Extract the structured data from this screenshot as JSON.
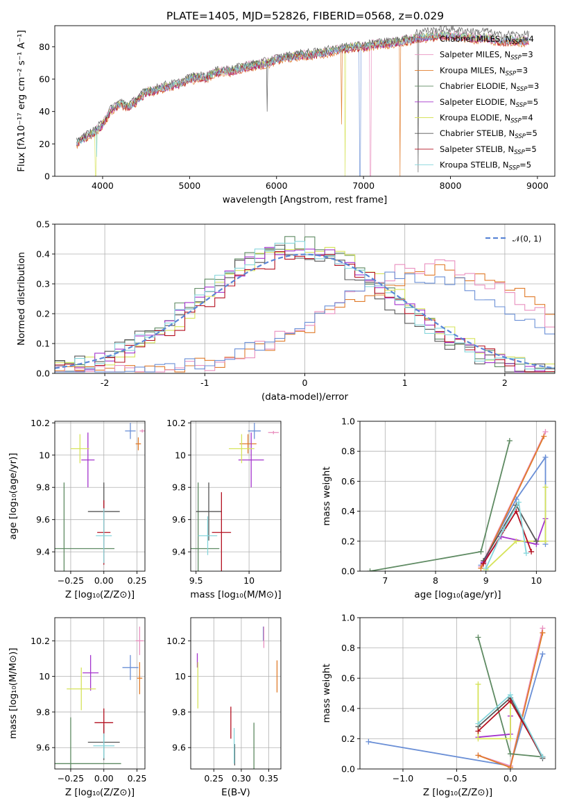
{
  "colors": {
    "Chabrier MILES": "#6a8fd6",
    "Salpeter MILES": "#e98fbf",
    "Kroupa MILES": "#e07b2a",
    "Chabrier ELODIE": "#5e8a62",
    "Salpeter ELODIE": "#a333cc",
    "Kroupa ELODIE": "#d6e35a",
    "Chabrier STELIB": "#555555",
    "Salpeter STELIB": "#b30f1f",
    "Kroupa STELIB": "#86d6dc"
  },
  "legend_entries": [
    {
      "model": "Chabrier MILES",
      "label": "Chabrier MILES, N",
      "sub": "SSP",
      "suffix": "=4"
    },
    {
      "model": "Salpeter MILES",
      "label": "Salpeter MILES, N",
      "sub": "SSP",
      "suffix": "=3"
    },
    {
      "model": "Kroupa MILES",
      "label": "Kroupa MILES, N",
      "sub": "SSP",
      "suffix": "=3"
    },
    {
      "model": "Chabrier ELODIE",
      "label": "Chabrier ELODIE, N",
      "sub": "SSP",
      "suffix": "=3"
    },
    {
      "model": "Salpeter ELODIE",
      "label": "Salpeter ELODIE, N",
      "sub": "SSP",
      "suffix": "=5"
    },
    {
      "model": "Kroupa ELODIE",
      "label": "Kroupa ELODIE, N",
      "sub": "SSP",
      "suffix": "=4"
    },
    {
      "model": "Chabrier STELIB",
      "label": "Chabrier STELIB, N",
      "sub": "SSP",
      "suffix": "=5"
    },
    {
      "model": "Salpeter STELIB",
      "label": "Salpeter STELIB, N",
      "sub": "SSP",
      "suffix": "=5"
    },
    {
      "model": "Kroupa STELIB",
      "label": "Kroupa STELIB, N",
      "sub": "SSP",
      "suffix": "=5"
    }
  ],
  "chart_data": [
    {
      "id": "spectrum",
      "type": "line",
      "title": "PLATE=1405, MJD=52826, FIBERID=0568, z=0.029",
      "xlabel": "wavelength [Angstrom, rest frame]",
      "ylabel": "Flux [fλ10⁻¹⁷ erg cm⁻² s⁻¹ A⁻¹]",
      "xlim": [
        3450,
        9200
      ],
      "ylim": [
        0,
        93
      ],
      "xticks": [
        4000,
        5000,
        6000,
        7000,
        8000,
        9000
      ],
      "yticks": [
        0,
        20,
        40,
        60,
        80
      ],
      "grid": false,
      "legend_position": "upper-right",
      "spectrum_envelope": {
        "x": [
          3700,
          3800,
          3900,
          4000,
          4100,
          4200,
          4300,
          4400,
          4500,
          4600,
          4700,
          4800,
          4900,
          5000,
          5100,
          5200,
          5300,
          5400,
          5500,
          5600,
          5700,
          5800,
          5900,
          6000,
          6100,
          6200,
          6300,
          6400,
          6500,
          6600,
          6700,
          6800,
          6900,
          7000,
          7100,
          7200,
          7300,
          7400,
          7500,
          7600,
          7700,
          7800,
          7900,
          8000,
          8100,
          8200,
          8300,
          8400,
          8500,
          8600,
          8700,
          8800,
          8900
        ],
        "y": [
          20,
          24,
          27,
          32,
          41,
          45,
          43,
          47,
          52,
          53,
          55,
          56,
          57,
          60,
          61,
          61,
          64,
          65,
          65,
          67,
          68,
          69,
          70,
          72,
          73,
          74,
          75,
          75,
          76,
          77,
          78,
          79,
          80,
          80,
          81,
          82,
          82,
          83,
          84,
          85,
          86,
          86,
          87,
          87,
          86,
          86,
          85,
          86,
          84,
          83,
          84,
          83,
          84
        ]
      },
      "series_offsets": [
        0.0,
        1.2,
        -1.4,
        0.8,
        -0.5,
        0.3,
        1.6,
        -0.9,
        -0.2
      ],
      "drops": [
        {
          "model": "Kroupa ELODIE",
          "x": 3920,
          "y": 0
        },
        {
          "model": "Kroupa STELIB",
          "x": 3930,
          "y": 12
        },
        {
          "model": "Chabrier STELIB",
          "x": 5890,
          "y": 40
        },
        {
          "model": "Kroupa MILES",
          "x": 6750,
          "y": 32
        },
        {
          "model": "Kroupa ELODIE",
          "x": 6790,
          "y": 0
        },
        {
          "model": "Chabrier MILES",
          "x": 6960,
          "y": 0
        },
        {
          "model": "Salpeter MILES",
          "x": 7080,
          "y": 0
        },
        {
          "model": "Kroupa MILES",
          "x": 7420,
          "y": 0
        },
        {
          "model": "Chabrier STELIB",
          "x": 7630,
          "y": 0
        }
      ]
    },
    {
      "id": "residuals",
      "type": "line",
      "xlabel": "(data-model)/error",
      "ylabel": "Normed distribution",
      "xlim": [
        -2.5,
        2.5
      ],
      "ylim": [
        0,
        0.5
      ],
      "xticks": [
        -2,
        -1,
        0,
        1,
        2
      ],
      "yticks": [
        0.0,
        0.1,
        0.2,
        0.3,
        0.4,
        0.5
      ],
      "grid": true,
      "legend": [
        {
          "label": "𝒩(0, 1)",
          "style": "dashed",
          "color": "#5b86d6"
        }
      ],
      "legend_position": "upper-right",
      "bin_width": 0.1,
      "histograms": [
        {
          "model": "Chabrier ELODIE",
          "center": -0.1,
          "peak": 0.44,
          "width": 0.95
        },
        {
          "model": "Kroupa ELODIE",
          "center": 0.0,
          "peak": 0.43,
          "width": 0.95
        },
        {
          "model": "Chabrier STELIB",
          "center": -0.15,
          "peak": 0.41,
          "width": 0.95
        },
        {
          "model": "Salpeter ELODIE",
          "center": -0.05,
          "peak": 0.42,
          "width": 0.95
        },
        {
          "model": "Salpeter STELIB",
          "center": 0.0,
          "peak": 0.4,
          "width": 0.95
        },
        {
          "model": "Kroupa STELIB",
          "center": -0.1,
          "peak": 0.42,
          "width": 0.95
        },
        {
          "model": "Kroupa MILES",
          "center": 1.4,
          "peak": 0.34,
          "width": 1.1
        },
        {
          "model": "Salpeter MILES",
          "center": 1.25,
          "peak": 0.36,
          "width": 1.0
        },
        {
          "model": "Chabrier MILES",
          "center": 1.1,
          "peak": 0.33,
          "width": 1.0
        }
      ]
    },
    {
      "id": "age_vs_Z",
      "type": "scatter",
      "xlabel": "Z [log₁₀(Z/Z⊙)]",
      "ylabel": "age  [log₁₀(age/yr)]",
      "xlim": [
        -0.37,
        0.31
      ],
      "ylim": [
        9.28,
        10.21
      ],
      "xticks": [
        -0.25,
        0.0,
        0.25
      ],
      "xtick_labels": [
        "−0.25",
        "0.00",
        "0.25"
      ],
      "yticks": [
        9.4,
        9.6,
        9.8,
        10.0,
        10.2
      ],
      "grid": true,
      "points": [
        {
          "model": "Chabrier MILES",
          "x": 0.2,
          "y": 10.15,
          "xerr": 0.04,
          "yerr": 0.05
        },
        {
          "model": "Salpeter MILES",
          "x": 0.29,
          "y": 10.15,
          "xerr": 0.02,
          "yerr": 0.01
        },
        {
          "model": "Kroupa MILES",
          "x": 0.26,
          "y": 10.07,
          "xerr": 0.02,
          "yerr": 0.04
        },
        {
          "model": "Chabrier ELODIE",
          "x": -0.3,
          "y": 9.42,
          "xerr": 0.38,
          "yerr": 0.41
        },
        {
          "model": "Salpeter ELODIE",
          "x": -0.12,
          "y": 9.97,
          "xerr": 0.05,
          "yerr": 0.17
        },
        {
          "model": "Kroupa ELODIE",
          "x": -0.18,
          "y": 10.04,
          "xerr": 0.07,
          "yerr": 0.09
        },
        {
          "model": "Chabrier STELIB",
          "x": 0.0,
          "y": 9.65,
          "xerr": 0.12,
          "yerr": 0.18
        },
        {
          "model": "Salpeter STELIB",
          "x": 0.0,
          "y": 9.52,
          "xerr": 0.05,
          "yerr": 0.2
        },
        {
          "model": "Kroupa STELIB",
          "x": 0.0,
          "y": 9.5,
          "xerr": 0.06,
          "yerr": 0.17
        }
      ]
    },
    {
      "id": "age_vs_mass",
      "type": "scatter",
      "xlabel": "mass [log₁₀(M/M⊙)]",
      "ylabel": "",
      "xlim": [
        9.45,
        10.3
      ],
      "ylim": [
        9.28,
        10.21
      ],
      "xticks": [
        9.5,
        10.0
      ],
      "yticks": [
        9.4,
        9.6,
        9.8,
        10.0,
        10.2
      ],
      "grid": true,
      "points": [
        {
          "model": "Chabrier MILES",
          "x": 10.05,
          "y": 10.15,
          "xerr": 0.06,
          "yerr": 0.05
        },
        {
          "model": "Salpeter MILES",
          "x": 10.23,
          "y": 10.14,
          "xerr": 0.05,
          "yerr": 0.01
        },
        {
          "model": "Kroupa MILES",
          "x": 9.99,
          "y": 10.07,
          "xerr": 0.08,
          "yerr": 0.06
        },
        {
          "model": "Chabrier ELODIE",
          "x": 9.52,
          "y": 9.42,
          "xerr": 0.2,
          "yerr": 0.41
        },
        {
          "model": "Salpeter ELODIE",
          "x": 10.02,
          "y": 9.97,
          "xerr": 0.12,
          "yerr": 0.17
        },
        {
          "model": "Kroupa ELODIE",
          "x": 9.93,
          "y": 10.04,
          "xerr": 0.12,
          "yerr": 0.09
        },
        {
          "model": "Chabrier STELIB",
          "x": 9.62,
          "y": 9.65,
          "xerr": 0.12,
          "yerr": 0.18
        },
        {
          "model": "Salpeter STELIB",
          "x": 9.74,
          "y": 9.52,
          "xerr": 0.09,
          "yerr": 0.25
        },
        {
          "model": "Kroupa STELIB",
          "x": 9.61,
          "y": 9.5,
          "xerr": 0.09,
          "yerr": 0.12
        }
      ]
    },
    {
      "id": "weight_vs_age",
      "type": "line",
      "xlabel": "age  [log₁₀(age/yr)]",
      "ylabel": "mass weight",
      "xlim": [
        6.5,
        10.38
      ],
      "ylim": [
        0,
        1
      ],
      "xticks": [
        7,
        8,
        9,
        10
      ],
      "yticks": [
        0.0,
        0.2,
        0.4,
        0.6,
        0.8,
        1.0
      ],
      "grid": true,
      "series": [
        {
          "model": "Chabrier ELODIE",
          "x": [
            6.7,
            8.9,
            9.47
          ],
          "y": [
            0.0,
            0.13,
            0.87
          ]
        },
        {
          "model": "Chabrier MILES",
          "x": [
            8.9,
            9.6,
            10.18,
            10.18
          ],
          "y": [
            0.04,
            0.48,
            0.76,
            0.18
          ]
        },
        {
          "model": "Salpeter MILES",
          "x": [
            8.9,
            10.18
          ],
          "y": [
            0.03,
            0.93
          ]
        },
        {
          "model": "Kroupa MILES",
          "x": [
            8.9,
            10.15
          ],
          "y": [
            0.02,
            0.9
          ]
        },
        {
          "model": "Salpeter ELODIE",
          "x": [
            8.95,
            9.3,
            10.0,
            10.18
          ],
          "y": [
            0.06,
            0.23,
            0.18,
            0.35
          ]
        },
        {
          "model": "Kroupa ELODIE",
          "x": [
            9.0,
            9.6,
            10.18,
            10.18
          ],
          "y": [
            0.01,
            0.2,
            0.2,
            0.56
          ]
        },
        {
          "model": "Chabrier STELIB",
          "x": [
            8.95,
            9.6,
            10.0
          ],
          "y": [
            0.07,
            0.44,
            0.2
          ]
        },
        {
          "model": "Salpeter STELIB",
          "x": [
            8.95,
            9.6,
            9.9
          ],
          "y": [
            0.05,
            0.4,
            0.13
          ]
        },
        {
          "model": "Kroupa STELIB",
          "x": [
            9.0,
            9.35,
            9.65,
            9.8
          ],
          "y": [
            0.02,
            0.28,
            0.46,
            0.12
          ]
        }
      ]
    },
    {
      "id": "mass_vs_Z",
      "type": "scatter",
      "xlabel": "Z [log₁₀(Z/Z⊙)]",
      "ylabel": "mass [log₁₀(M/M⊙)]",
      "xlim": [
        -0.37,
        0.31
      ],
      "ylim": [
        9.48,
        10.33
      ],
      "xticks": [
        -0.25,
        0.0,
        0.25
      ],
      "xtick_labels": [
        "−0.25",
        "0.00",
        "0.25"
      ],
      "yticks": [
        9.6,
        9.8,
        10.0,
        10.2
      ],
      "grid": true,
      "points": [
        {
          "model": "Chabrier MILES",
          "x": 0.2,
          "y": 10.05,
          "xerr": 0.06,
          "yerr": 0.07
        },
        {
          "model": "Salpeter MILES",
          "x": 0.27,
          "y": 10.2,
          "xerr": 0.03,
          "yerr": 0.08
        },
        {
          "model": "Kroupa MILES",
          "x": 0.27,
          "y": 9.99,
          "xerr": 0.02,
          "yerr": 0.09
        },
        {
          "model": "Chabrier ELODIE",
          "x": -0.25,
          "y": 9.51,
          "xerr": 0.38,
          "yerr": 0.26
        },
        {
          "model": "Salpeter ELODIE",
          "x": -0.1,
          "y": 10.02,
          "xerr": 0.06,
          "yerr": 0.1
        },
        {
          "model": "Kroupa ELODIE",
          "x": -0.17,
          "y": 9.93,
          "xerr": 0.11,
          "yerr": 0.12
        },
        {
          "model": "Chabrier STELIB",
          "x": 0.0,
          "y": 9.63,
          "xerr": 0.12,
          "yerr": 0.1
        },
        {
          "model": "Salpeter STELIB",
          "x": 0.0,
          "y": 9.74,
          "xerr": 0.07,
          "yerr": 0.08
        },
        {
          "model": "Kroupa STELIB",
          "x": 0.0,
          "y": 9.61,
          "xerr": 0.08,
          "yerr": 0.07
        }
      ]
    },
    {
      "id": "mass_vs_EBV",
      "type": "scatter",
      "xlabel": "E(B-V)",
      "ylabel": "",
      "xlim": [
        0.208,
        0.372
      ],
      "ylim": [
        9.48,
        10.33
      ],
      "xticks": [
        0.25,
        0.3,
        0.35
      ],
      "xtick_labels": [
        "0.25",
        "0.30",
        "0.35"
      ],
      "yticks": [
        9.6,
        9.8,
        10.0,
        10.2
      ],
      "grid": true,
      "points": [
        {
          "model": "Chabrier MILES",
          "x": 0.34,
          "y": 10.24,
          "xerr": 0.0,
          "yerr": 0.04
        },
        {
          "model": "Salpeter MILES",
          "x": 0.341,
          "y": 10.22,
          "xerr": 0.0,
          "yerr": 0.06
        },
        {
          "model": "Kroupa MILES",
          "x": 0.365,
          "y": 10.0,
          "xerr": 0.0,
          "yerr": 0.09
        },
        {
          "model": "Chabrier ELODIE",
          "x": 0.323,
          "y": 9.6,
          "xerr": 0.0,
          "yerr": 0.14
        },
        {
          "model": "Salpeter ELODIE",
          "x": 0.22,
          "y": 10.09,
          "xerr": 0.0,
          "yerr": 0.04
        },
        {
          "model": "Kroupa ELODIE",
          "x": 0.221,
          "y": 9.95,
          "xerr": 0.0,
          "yerr": 0.13
        },
        {
          "model": "Chabrier STELIB",
          "x": 0.288,
          "y": 9.56,
          "xerr": 0.0,
          "yerr": 0.06
        },
        {
          "model": "Salpeter STELIB",
          "x": 0.281,
          "y": 9.74,
          "xerr": 0.0,
          "yerr": 0.09
        },
        {
          "model": "Kroupa STELIB",
          "x": 0.287,
          "y": 9.61,
          "xerr": 0.0,
          "yerr": 0.1
        }
      ]
    },
    {
      "id": "weight_vs_Z",
      "type": "line",
      "xlabel": "Z [log₁₀(Z/Z⊙)]",
      "ylabel": "mass weight",
      "xlim": [
        -1.4,
        0.42
      ],
      "ylim": [
        0,
        1
      ],
      "xticks": [
        -1.0,
        -0.5,
        0.0
      ],
      "xtick_labels": [
        "−1.0",
        "−0.5",
        "0.0"
      ],
      "yticks": [
        0.0,
        0.2,
        0.4,
        0.6,
        0.8,
        1.0
      ],
      "grid": true,
      "series": [
        {
          "model": "Chabrier MILES",
          "x": [
            -1.32,
            0.0,
            0.3
          ],
          "y": [
            0.18,
            0.02,
            0.76
          ]
        },
        {
          "model": "Salpeter MILES",
          "x": [
            -0.3,
            0.0,
            0.3
          ],
          "y": [
            0.09,
            0.02,
            0.93
          ]
        },
        {
          "model": "Kroupa MILES",
          "x": [
            -0.3,
            0.0,
            0.3
          ],
          "y": [
            0.09,
            0.01,
            0.9
          ]
        },
        {
          "model": "Chabrier ELODIE",
          "x": [
            -0.3,
            0.0,
            0.3
          ],
          "y": [
            0.87,
            0.1,
            0.08
          ]
        },
        {
          "model": "Salpeter ELODIE",
          "x": [
            -0.3,
            0.0,
            0.0
          ],
          "y": [
            0.21,
            0.23,
            0.35
          ]
        },
        {
          "model": "Kroupa ELODIE",
          "x": [
            -0.3,
            -0.3,
            0.0,
            0.0
          ],
          "y": [
            0.56,
            0.2,
            0.2,
            0.45
          ]
        },
        {
          "model": "Chabrier STELIB",
          "x": [
            -0.3,
            0.0,
            0.3
          ],
          "y": [
            0.28,
            0.47,
            0.07
          ]
        },
        {
          "model": "Salpeter STELIB",
          "x": [
            -0.3,
            0.0,
            0.3
          ],
          "y": [
            0.25,
            0.45,
            0.08
          ]
        },
        {
          "model": "Kroupa STELIB",
          "x": [
            -0.3,
            0.0,
            0.3
          ],
          "y": [
            0.3,
            0.49,
            0.08
          ]
        }
      ]
    }
  ]
}
